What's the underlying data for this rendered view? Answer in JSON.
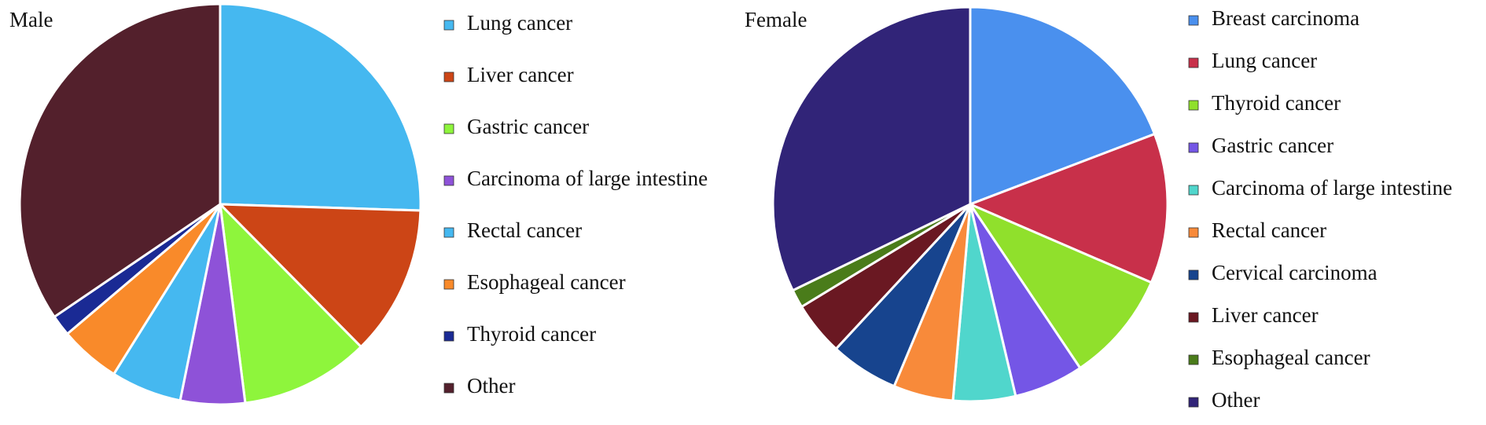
{
  "chart_data": [
    {
      "type": "pie",
      "title": "Male",
      "categories": [
        "Lung cancer",
        "Liver cancer",
        "Gastric cancer",
        "Carcinoma of large intestine",
        "Rectal cancer",
        "Esophageal cancer",
        "Thyroid cancer",
        "Other"
      ],
      "values": [
        25.5,
        12.1,
        10.4,
        5.2,
        5.7,
        4.9,
        1.7,
        34.5
      ],
      "colors": [
        "#45b8f0",
        "#cc4516",
        "#8ef53c",
        "#8e52d8",
        "#45b8f0",
        "#f98a2a",
        "#1a2a94",
        "#53202c"
      ]
    },
    {
      "type": "pie",
      "title": "Female",
      "categories": [
        "Breast carcinoma",
        "Lung cancer",
        "Thyroid cancer",
        "Gastric cancer",
        "Carcinoma of large intestine",
        "Rectal cancer",
        "Cervical carcinoma",
        "Liver cancer",
        "Esophageal cancer",
        "Other"
      ],
      "values": [
        19.2,
        12.3,
        9.1,
        5.7,
        5.1,
        4.9,
        5.6,
        4.4,
        1.5,
        32.2
      ],
      "colors": [
        "#4a90ee",
        "#c8304a",
        "#90e02c",
        "#7456e6",
        "#50d6cc",
        "#f88a3a",
        "#17448e",
        "#6a1822",
        "#4a7c1a",
        "#312478"
      ]
    }
  ]
}
